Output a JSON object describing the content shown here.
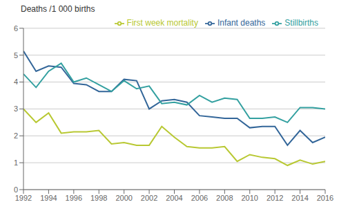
{
  "chart_data": {
    "type": "line",
    "ylabel": "Deaths /1 000 births",
    "x": [
      1992,
      1993,
      1994,
      1995,
      1996,
      1997,
      1998,
      1999,
      2000,
      2001,
      2002,
      2003,
      2004,
      2005,
      2006,
      2007,
      2008,
      2009,
      2010,
      2011,
      2012,
      2013,
      2014,
      2015,
      2016
    ],
    "series": [
      {
        "name": "Infant deaths",
        "color": "#336699",
        "values": [
          5.15,
          4.4,
          4.6,
          4.55,
          3.95,
          3.9,
          3.65,
          3.65,
          4.1,
          4.05,
          3.0,
          3.3,
          3.35,
          3.25,
          2.75,
          2.7,
          2.65,
          2.65,
          2.3,
          2.35,
          2.35,
          1.65,
          2.2,
          1.75,
          1.95
        ]
      },
      {
        "name": "First week mortality",
        "color": "#b8c832",
        "values": [
          3.0,
          2.5,
          2.85,
          2.1,
          2.15,
          2.15,
          2.2,
          1.7,
          1.75,
          1.65,
          1.65,
          2.35,
          1.95,
          1.6,
          1.55,
          1.55,
          1.6,
          1.05,
          1.3,
          1.2,
          1.15,
          0.9,
          1.1,
          0.95,
          1.05
        ]
      },
      {
        "name": "Stillbirths",
        "color": "#33a0a0",
        "values": [
          4.3,
          3.8,
          4.4,
          4.7,
          4.0,
          4.15,
          3.9,
          3.65,
          4.05,
          3.75,
          3.85,
          3.2,
          3.25,
          3.15,
          3.5,
          3.25,
          3.4,
          3.35,
          2.65,
          2.65,
          2.7,
          2.5,
          3.05,
          3.05,
          3.0
        ]
      }
    ],
    "xlim": [
      1992,
      2016
    ],
    "xticks": [
      1992,
      1994,
      1996,
      1998,
      2000,
      2002,
      2004,
      2006,
      2008,
      2010,
      2012,
      2014,
      2016
    ],
    "ylim": [
      0,
      6
    ],
    "yticks": [
      0,
      1,
      2,
      3,
      4,
      5,
      6
    ],
    "grid": "y",
    "legend": "upper right"
  }
}
